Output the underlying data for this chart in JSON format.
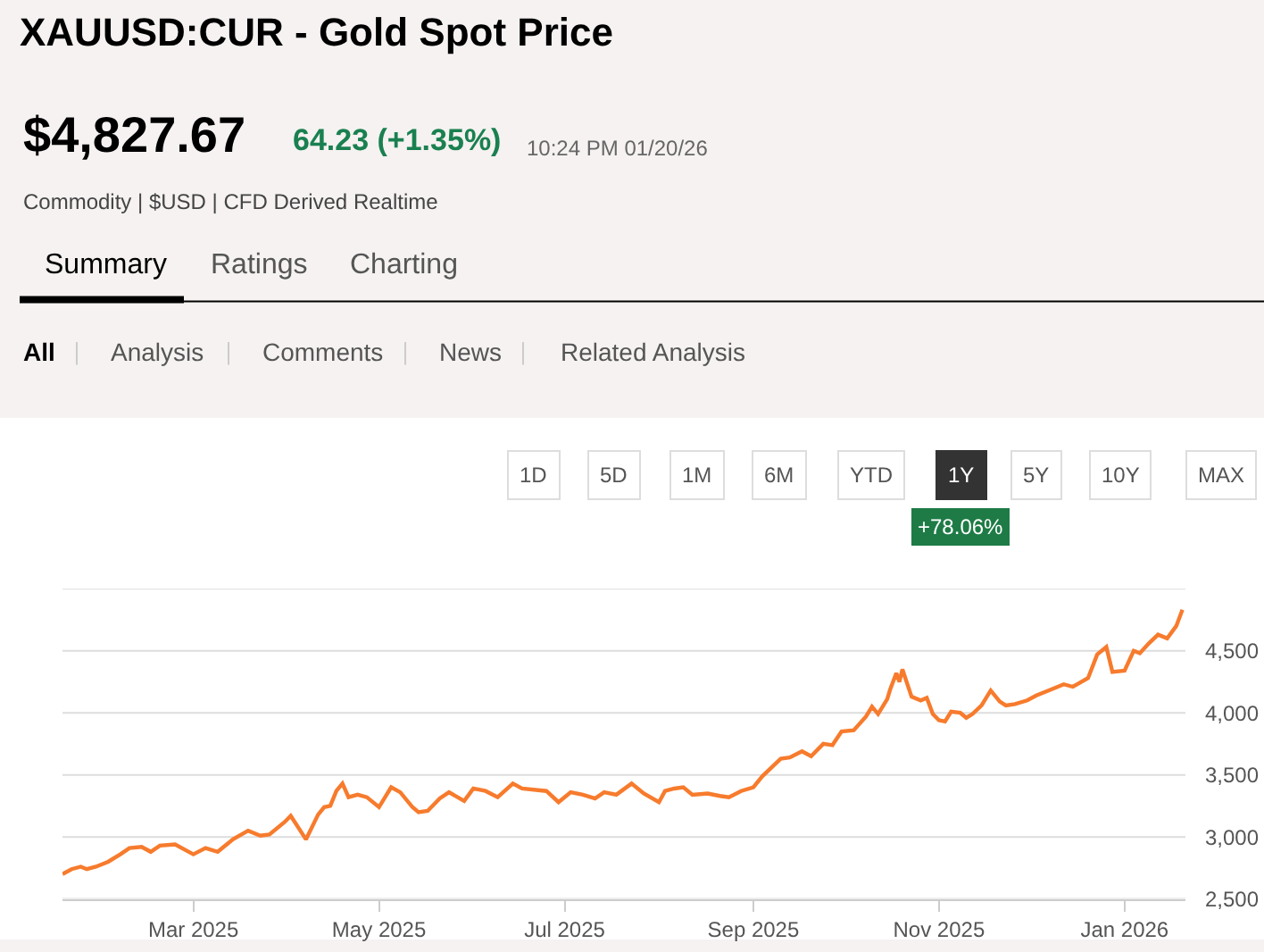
{
  "chart_data": {
    "type": "line",
    "title": "XAUUSD:CUR - Gold Spot Price",
    "annotations": [
      "$4,827.67",
      "64.23 (+1.35%)",
      "10:24 PM 01/20/26",
      "Commodity | $USD | CFD Derived Realtime",
      "Summary",
      "Ratings",
      "Charting",
      "All",
      "Analysis",
      "Comments",
      "News",
      "Related Analysis",
      "1D",
      "5D",
      "1M",
      "6M",
      "YTD",
      "1Y",
      "5Y",
      "10Y",
      "MAX",
      "+78.06%"
    ],
    "x": [
      "2025-01-17",
      "2025-01-20",
      "2025-01-23",
      "2025-01-25",
      "2025-01-28",
      "2025-02-01",
      "2025-02-05",
      "2025-02-08",
      "2025-02-12",
      "2025-02-15",
      "2025-02-18",
      "2025-02-23",
      "2025-03-01",
      "2025-03-05",
      "2025-03-09",
      "2025-03-14",
      "2025-03-19",
      "2025-03-23",
      "2025-03-26",
      "2025-03-31",
      "2025-04-02",
      "2025-04-07",
      "2025-04-11",
      "2025-04-13",
      "2025-04-15",
      "2025-04-17",
      "2025-04-19",
      "2025-04-21",
      "2025-04-24",
      "2025-04-27",
      "2025-05-01",
      "2025-05-05",
      "2025-05-08",
      "2025-05-12",
      "2025-05-14",
      "2025-05-17",
      "2025-05-21",
      "2025-05-24",
      "2025-05-29",
      "2025-06-01",
      "2025-06-05",
      "2025-06-09",
      "2025-06-14",
      "2025-06-17",
      "2025-06-25",
      "2025-06-29",
      "2025-07-03",
      "2025-07-07",
      "2025-07-11",
      "2025-07-14",
      "2025-07-18",
      "2025-07-23",
      "2025-07-27",
      "2025-08-01",
      "2025-08-03",
      "2025-08-06",
      "2025-08-09",
      "2025-08-12",
      "2025-08-17",
      "2025-08-21",
      "2025-08-24",
      "2025-08-28",
      "2025-09-01",
      "2025-09-04",
      "2025-09-07",
      "2025-09-10",
      "2025-09-13",
      "2025-09-17",
      "2025-09-20",
      "2025-09-24",
      "2025-09-27",
      "2025-09-30",
      "2025-10-04",
      "2025-10-08",
      "2025-10-10",
      "2025-10-12",
      "2025-10-15",
      "2025-10-16",
      "2025-10-18",
      "2025-10-19",
      "2025-10-20",
      "2025-10-23",
      "2025-10-26",
      "2025-10-28",
      "2025-10-30",
      "2025-11-01",
      "2025-11-03",
      "2025-11-05",
      "2025-11-08",
      "2025-11-10",
      "2025-11-12",
      "2025-11-15",
      "2025-11-18",
      "2025-11-21",
      "2025-11-23",
      "2025-11-26",
      "2025-11-30",
      "2025-12-03",
      "2025-12-07",
      "2025-12-12",
      "2025-12-15",
      "2025-12-20",
      "2025-12-23",
      "2025-12-26",
      "2025-12-28",
      "2026-01-01",
      "2026-01-04",
      "2026-01-06",
      "2026-01-09",
      "2026-01-12",
      "2026-01-15",
      "2026-01-18",
      "2026-01-20"
    ],
    "series": [
      {
        "color": "#f77b2d",
        "values": [
          2700,
          2740,
          2760,
          2740,
          2760,
          2800,
          2860,
          2910,
          2920,
          2880,
          2930,
          2940,
          2860,
          2910,
          2880,
          2980,
          3050,
          3010,
          3020,
          3120,
          3170,
          2980,
          3180,
          3240,
          3250,
          3370,
          3430,
          3320,
          3340,
          3320,
          3240,
          3400,
          3360,
          3240,
          3200,
          3210,
          3310,
          3360,
          3290,
          3390,
          3370,
          3320,
          3430,
          3390,
          3370,
          3280,
          3360,
          3340,
          3310,
          3360,
          3340,
          3430,
          3350,
          3280,
          3370,
          3390,
          3400,
          3340,
          3350,
          3330,
          3320,
          3370,
          3400,
          3490,
          3560,
          3630,
          3640,
          3690,
          3650,
          3750,
          3740,
          3850,
          3860,
          3970,
          4050,
          3990,
          4110,
          4190,
          4320,
          4250,
          4350,
          4130,
          4100,
          4120,
          3990,
          3940,
          3930,
          4010,
          4000,
          3960,
          3990,
          4060,
          4180,
          4090,
          4060,
          4070,
          4100,
          4140,
          4180,
          4230,
          4210,
          4280,
          4470,
          4530,
          4330,
          4340,
          4500,
          4480,
          4560,
          4630,
          4600,
          4700,
          4830
        ]
      }
    ],
    "xlim": [
      "2025-01-17",
      "2026-01-21"
    ],
    "xticks": [
      {
        "value": "2025-03-01",
        "label": "Mar 2025"
      },
      {
        "value": "2025-05-01",
        "label": "May 2025"
      },
      {
        "value": "2025-07-01",
        "label": "Jul 2025"
      },
      {
        "value": "2025-09-01",
        "label": "Sep 2025"
      },
      {
        "value": "2025-11-01",
        "label": "Nov 2025"
      },
      {
        "value": "2026-01-01",
        "label": "Jan 2026"
      }
    ],
    "ylim": [
      2500,
      5000
    ],
    "yticks": [
      {
        "value": 2500,
        "label": "2,500"
      },
      {
        "value": 3000,
        "label": "3,000"
      },
      {
        "value": 3500,
        "label": "3,500"
      },
      {
        "value": 4000,
        "label": "4,000"
      },
      {
        "value": 4500,
        "label": "4,500"
      },
      {
        "value": 5000,
        "label": null
      }
    ],
    "grid": "y",
    "marker": "none",
    "line_style": "solid"
  }
}
